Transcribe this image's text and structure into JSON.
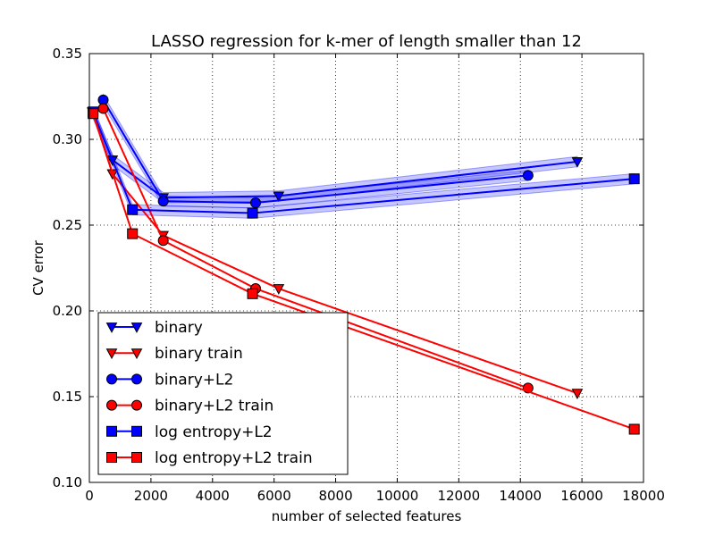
{
  "chart_data": {
    "type": "line",
    "title": "LASSO regression for k-mer of length smaller than 12",
    "xlabel": "number of selected features",
    "ylabel": "CV error",
    "xlim": [
      0,
      18000
    ],
    "ylim": [
      0.1,
      0.35
    ],
    "xticks": [
      0,
      2000,
      4000,
      6000,
      8000,
      10000,
      12000,
      14000,
      16000,
      18000
    ],
    "yticks": [
      0.1,
      0.15,
      0.2,
      0.25,
      0.3,
      0.35
    ],
    "xtick_labels": [
      "0",
      "2000",
      "4000",
      "6000",
      "8000",
      "10000",
      "12000",
      "14000",
      "16000",
      "18000"
    ],
    "ytick_labels": [
      "0.10",
      "0.15",
      "0.20",
      "0.25",
      "0.30",
      "0.35"
    ],
    "grid": true,
    "legend_position": "bottom-left",
    "series": [
      {
        "name": "binary",
        "color": "#0000ff",
        "marker": "triangle-down",
        "band": 0.003,
        "x": [
          100,
          750,
          2400,
          6150,
          15850
        ],
        "y": [
          0.316,
          0.288,
          0.266,
          0.267,
          0.287
        ]
      },
      {
        "name": "binary train",
        "color": "#ff0000",
        "marker": "triangle-down",
        "x": [
          100,
          750,
          2400,
          6150,
          15850
        ],
        "y": [
          0.316,
          0.28,
          0.244,
          0.213,
          0.152
        ]
      },
      {
        "name": "binary+L2",
        "color": "#0000ff",
        "marker": "circle",
        "band": 0.003,
        "x": [
          450,
          2400,
          5400,
          14250
        ],
        "y": [
          0.323,
          0.264,
          0.263,
          0.279
        ]
      },
      {
        "name": "binary+L2 train",
        "color": "#ff0000",
        "marker": "circle",
        "x": [
          450,
          2400,
          5400,
          14250
        ],
        "y": [
          0.318,
          0.241,
          0.213,
          0.155
        ]
      },
      {
        "name": "log entropy+L2",
        "color": "#0000ff",
        "marker": "square",
        "band": 0.003,
        "x": [
          120,
          1400,
          5300,
          17700
        ],
        "y": [
          0.316,
          0.259,
          0.257,
          0.277
        ]
      },
      {
        "name": "log entropy+L2 train",
        "color": "#ff0000",
        "marker": "square",
        "x": [
          120,
          1400,
          5300,
          17700
        ],
        "y": [
          0.315,
          0.245,
          0.21,
          0.131
        ]
      }
    ]
  }
}
